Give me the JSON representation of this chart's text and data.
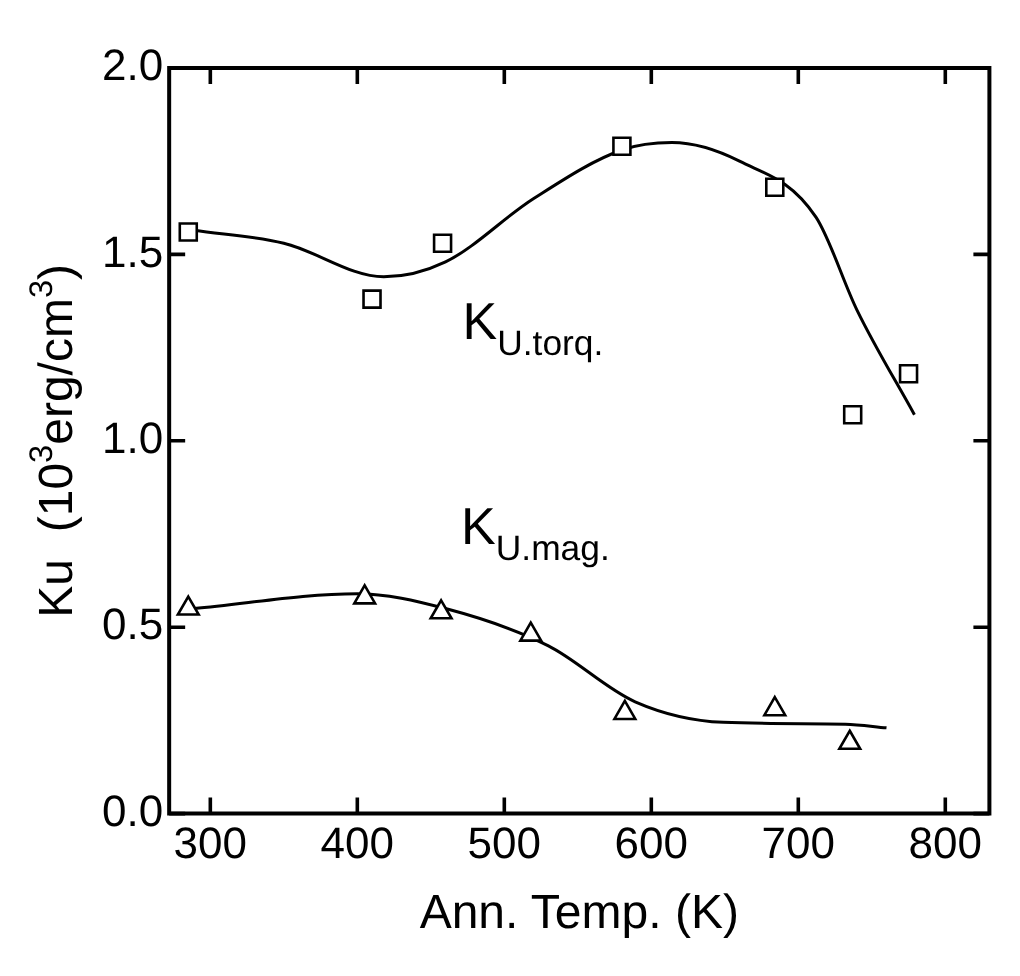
{
  "chart_data": {
    "type": "scatter",
    "xlabel": "Ann. Temp. (K)",
    "ylabel": "Ku  (10$^{3}$erg/cm$^{3}$)",
    "xlim": [
      272,
      830
    ],
    "xticks": [
      300,
      400,
      500,
      600,
      700,
      800
    ],
    "ylim": [
      0,
      2
    ],
    "yticks": [
      {
        "value": 0,
        "label": "0.0"
      },
      {
        "value": 0.5,
        "label": "0.5"
      },
      {
        "value": 1,
        "label": "1.0"
      },
      {
        "value": 1.5,
        "label": "1.5"
      },
      {
        "value": 2,
        "label": "2.0"
      }
    ],
    "grid": false,
    "legend": false,
    "series": [
      {
        "name": "K$_{U.torq.}$",
        "type": "scatter",
        "marker": "square",
        "color": "#000000",
        "x": [
          285,
          410,
          458,
          580,
          684,
          737,
          775
        ],
        "values": [
          1.56,
          1.38,
          1.53,
          1.79,
          1.68,
          1.07,
          1.18
        ]
      },
      {
        "name": "K$_{U.mag.}$",
        "type": "scatter",
        "marker": "triangle",
        "color": "#000000",
        "x": [
          285,
          405,
          457,
          518,
          582,
          684,
          735
        ],
        "values": [
          0.55,
          0.58,
          0.54,
          0.48,
          0.27,
          0.28,
          0.19
        ]
      },
      {
        "type": "line",
        "marker": "none",
        "line_style": "solid",
        "color": "#000000",
        "x": [
          289,
          350,
          418,
          460,
          520,
          580,
          614,
          660,
          712,
          740,
          779
        ],
        "values": [
          1.565,
          1.53,
          1.44,
          1.48,
          1.65,
          1.78,
          1.8,
          1.75,
          1.6,
          1.35,
          1.07
        ]
      },
      {
        "type": "line",
        "marker": "none",
        "line_style": "solid",
        "color": "#000000",
        "x": [
          289,
          400,
          460,
          530,
          589,
          649,
          732,
          760
        ],
        "values": [
          0.55,
          0.59,
          0.55,
          0.45,
          0.3,
          0.245,
          0.24,
          0.23
        ]
      }
    ]
  }
}
